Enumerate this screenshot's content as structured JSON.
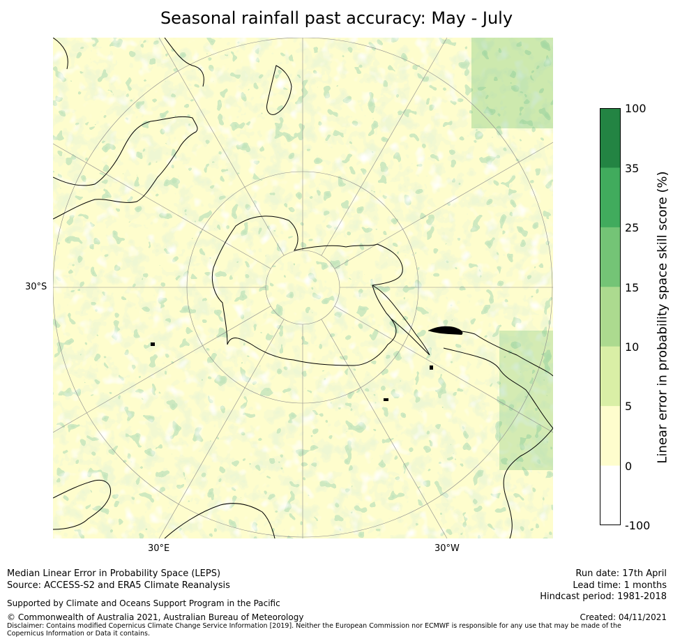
{
  "title": "Seasonal rainfall past accuracy: May - July",
  "map": {
    "projection": "south polar stereographic",
    "latitude_labels": [
      "30°S"
    ],
    "longitude_labels": [
      "30°E",
      "30°W"
    ],
    "palette": {
      "-100_0": "#ffffff",
      "0_5": "#fefdcd",
      "5_10": "#d9efa6",
      "10_15": "#acda8f",
      "15_25": "#74c476",
      "25_35": "#41ab5d",
      "35_100": "#238443"
    }
  },
  "colorbar": {
    "title": "Linear error in probability space skill score (%)",
    "ticks": [
      "100",
      "35",
      "25",
      "15",
      "10",
      "5",
      "0",
      "-100"
    ],
    "colors": [
      "#238443",
      "#41ab5d",
      "#74c476",
      "#acda8f",
      "#d9efa6",
      "#fefdcd",
      "#ffffff"
    ]
  },
  "footer": {
    "left": [
      "Median Linear Error in Probability Space (LEPS)",
      "Source: ACCESS-S2 and ERA5 Climate Reanalysis"
    ],
    "supported": "Supported by Climate and Oceans Support Program in the Pacific",
    "copyright": "© Commonwealth of Australia 2021, Australian Bureau of Meteorology",
    "disclaimer": "Disclaimer: Contains modified Copernicus Climate Change Service Information [2019]. Neither the European Commission nor ECMWF is responsible for any use that may be made of the Copernicus Information or Data it contains.",
    "right": [
      "Run date: 17th April",
      "Lead time: 1 months",
      "Hindcast period: 1981-2018"
    ],
    "created": "Created: 04/11/2021"
  }
}
